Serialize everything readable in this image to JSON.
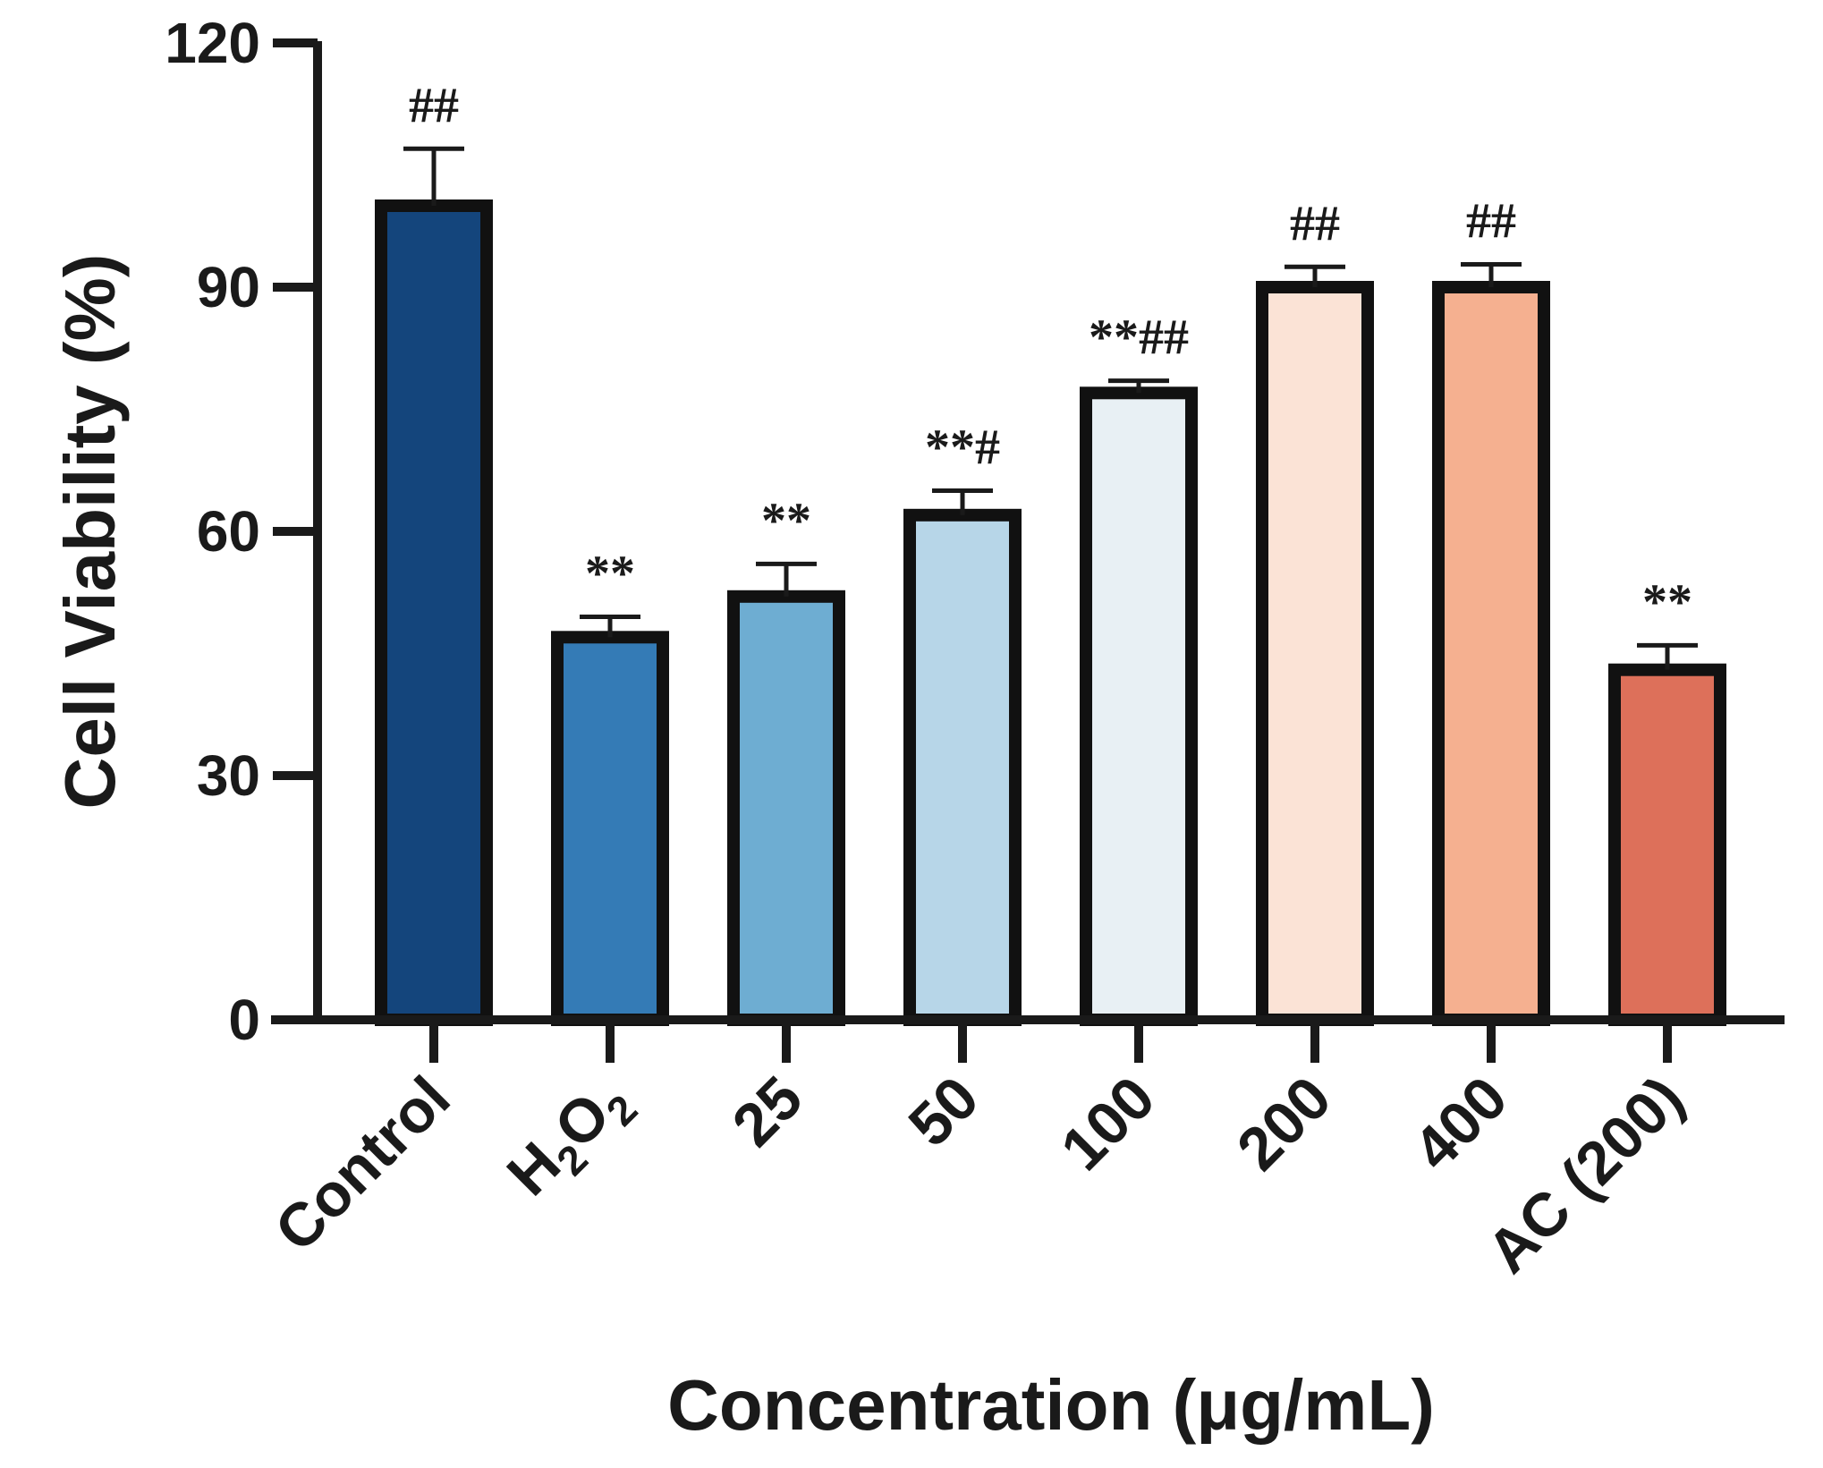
{
  "chart_data": {
    "type": "bar",
    "title": "",
    "xlabel": "Concentration (μg/mL)",
    "ylabel": "Cell Viability (%)",
    "ylim": [
      0,
      120
    ],
    "yticks": [
      0,
      30,
      60,
      90,
      120
    ],
    "grid": false,
    "legend": "none",
    "categories": [
      {
        "label": "Control"
      },
      {
        "label": "H",
        "sub1": "2",
        "mid": "O",
        "sub2": "2"
      },
      {
        "label": "25"
      },
      {
        "label": "50"
      },
      {
        "label": "100"
      },
      {
        "label": "200"
      },
      {
        "label": "400"
      },
      {
        "label": "AC (200)"
      }
    ],
    "values": [
      100,
      47,
      52,
      62,
      77,
      90,
      90,
      43
    ],
    "errors": [
      7,
      2.5,
      4,
      3,
      1.5,
      2.5,
      2.8,
      3
    ],
    "significance": [
      "##",
      "**",
      "**",
      "**#",
      "**##",
      "##",
      "##",
      "**"
    ],
    "colors": [
      "#14457c",
      "#347bb6",
      "#6eadd2",
      "#b7d6e8",
      "#e8f0f4",
      "#fbe3d6",
      "#f5b090",
      "#dd705a"
    ]
  }
}
